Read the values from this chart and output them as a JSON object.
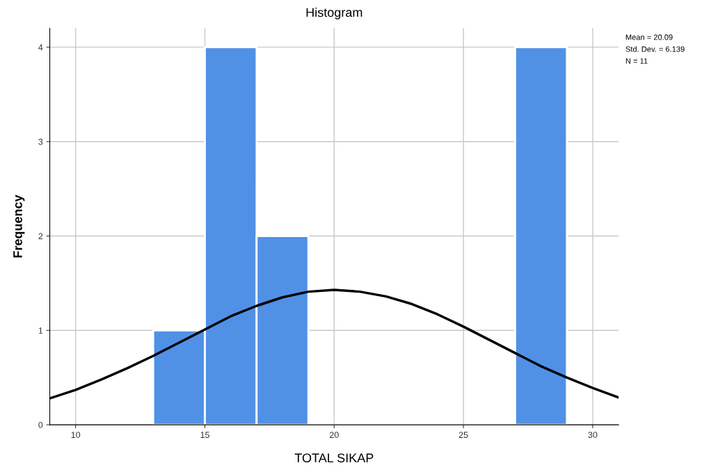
{
  "chart_data": {
    "type": "histogram",
    "title": "Histogram",
    "xlabel": "TOTAL SIKAP",
    "ylabel": "Frequency",
    "bins": [
      13,
      15,
      17,
      19,
      21,
      23,
      25,
      27,
      29
    ],
    "values": [
      1,
      4,
      2,
      0,
      0,
      0,
      0,
      4
    ],
    "color": "#5091e6",
    "series": [
      {
        "type": "line",
        "color": "#000000",
        "x": [
          9,
          10,
          11,
          12,
          13,
          14,
          15,
          16,
          17,
          18,
          19,
          20,
          21,
          22,
          23,
          24,
          25,
          26,
          27,
          28,
          29,
          30,
          31
        ],
        "values": [
          0.28,
          0.37,
          0.48,
          0.6,
          0.73,
          0.87,
          1.01,
          1.15,
          1.26,
          1.35,
          1.41,
          1.43,
          1.41,
          1.36,
          1.28,
          1.17,
          1.04,
          0.9,
          0.76,
          0.62,
          0.5,
          0.39,
          0.29
        ]
      }
    ],
    "xlim": [
      9,
      31
    ],
    "xticks": [
      10,
      15,
      20,
      25,
      30
    ],
    "ylim": [
      0,
      4.2
    ],
    "yticks": [
      0,
      1,
      2,
      3,
      4
    ],
    "grid": true,
    "legend": false,
    "annotations": [
      "Mean = 20.09",
      "Std. Dev. = 6.139",
      "N = 11"
    ]
  }
}
